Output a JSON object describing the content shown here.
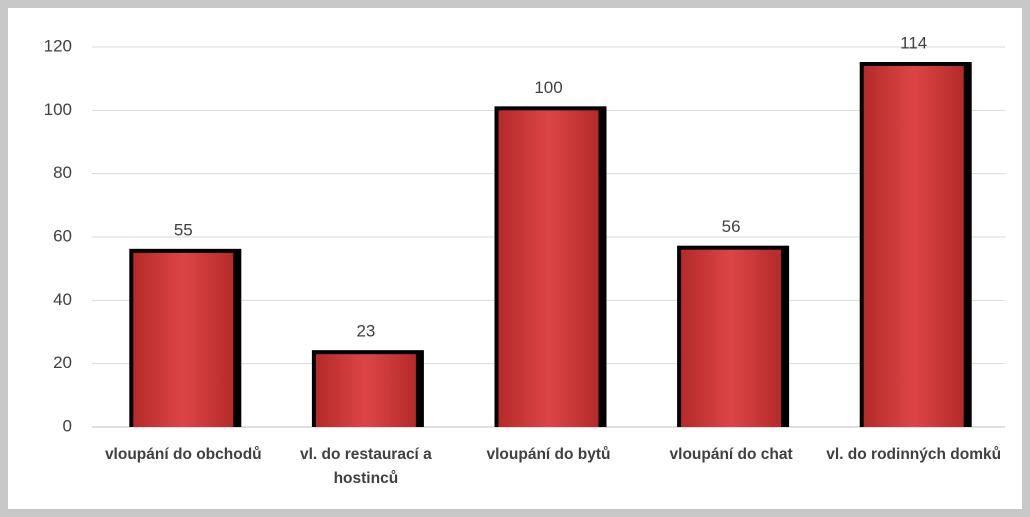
{
  "chart_data": {
    "type": "bar",
    "categories": [
      "vloupání do obchodů",
      "vl. do restaurací a hostinců",
      "vloupání do bytů",
      "vloupání do chat",
      "vl. do rodinných domků"
    ],
    "values": [
      55,
      23,
      100,
      56,
      114
    ],
    "color": "#d63a3a",
    "ylim": [
      0,
      120
    ],
    "yticks": [
      0,
      20,
      40,
      60,
      80,
      100,
      120
    ],
    "grid": true
  }
}
